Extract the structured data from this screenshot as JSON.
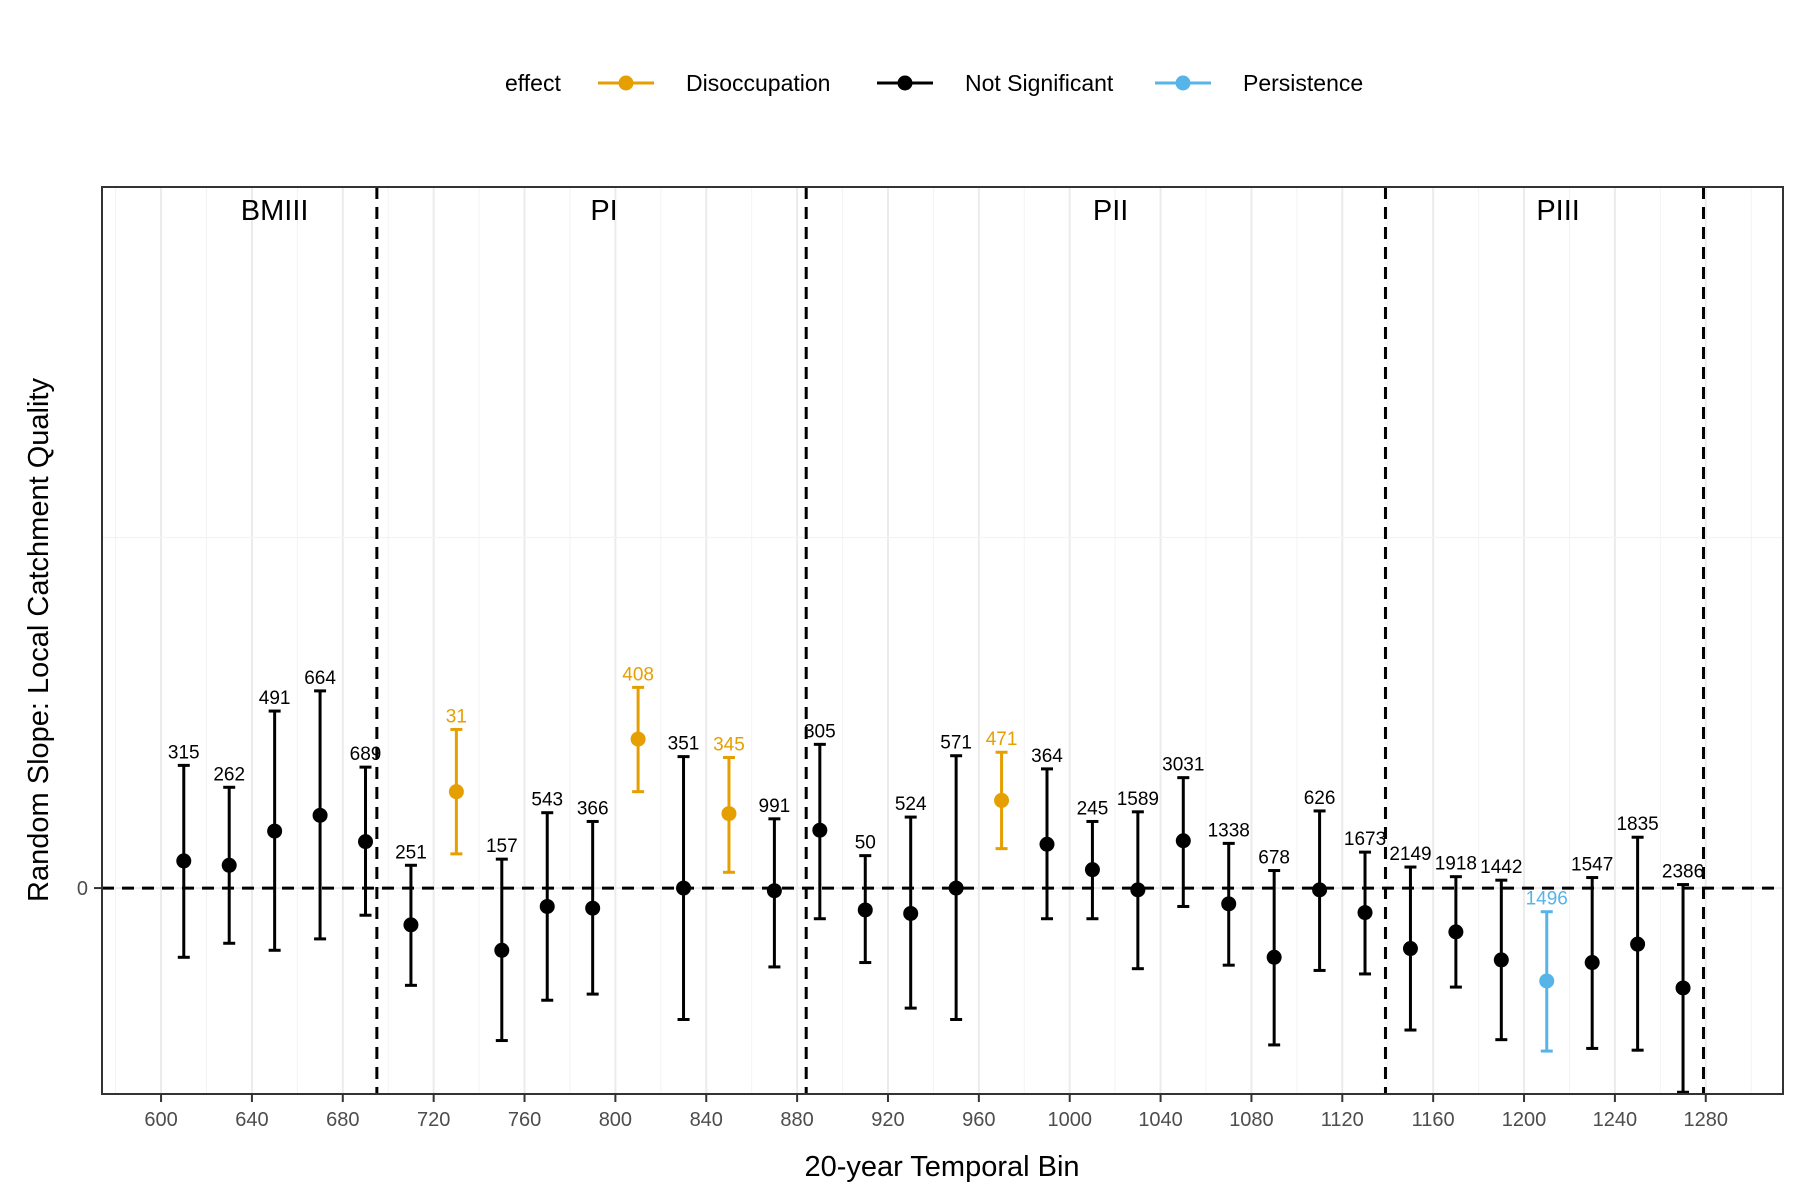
{
  "chart_data": {
    "type": "scatter",
    "xlabel": "20-year Temporal Bin",
    "ylabel": "Random Slope: Local Catchment Quality",
    "xlim": [
      574,
      1314
    ],
    "ylim": [
      -0.235,
      0.8
    ],
    "xticks": [
      600,
      640,
      680,
      720,
      760,
      800,
      840,
      880,
      920,
      960,
      1000,
      1040,
      1080,
      1120,
      1160,
      1200,
      1240,
      1280
    ],
    "yticks": [
      0
    ],
    "ytick_labels": [
      "0"
    ],
    "y_minor_grid": [
      0.4
    ],
    "legend": {
      "title": "effect",
      "position": "top",
      "entries": [
        {
          "name": "Disoccupation",
          "color": "#E69F00"
        },
        {
          "name": "Not Significant",
          "color": "#000000"
        },
        {
          "name": "Persistence",
          "color": "#56B4E9"
        }
      ]
    },
    "periods": [
      {
        "label": "BMIII",
        "x": 650
      },
      {
        "label": "PI",
        "x": 795
      },
      {
        "label": "PII",
        "x": 1018
      },
      {
        "label": "PIII",
        "x": 1215
      }
    ],
    "period_boundaries": [
      695,
      884,
      1139,
      1279
    ],
    "zero_line": 0,
    "points": [
      {
        "x": 610,
        "y": 0.031,
        "lo": -0.079,
        "hi": 0.14,
        "label": "315",
        "effect": "Not Significant"
      },
      {
        "x": 630,
        "y": 0.026,
        "lo": -0.063,
        "hi": 0.115,
        "label": "262",
        "effect": "Not Significant"
      },
      {
        "x": 650,
        "y": 0.065,
        "lo": -0.071,
        "hi": 0.202,
        "label": "491",
        "effect": "Not Significant"
      },
      {
        "x": 670,
        "y": 0.083,
        "lo": -0.058,
        "hi": 0.225,
        "label": "664",
        "effect": "Not Significant"
      },
      {
        "x": 690,
        "y": 0.053,
        "lo": -0.031,
        "hi": 0.138,
        "label": "689",
        "effect": "Not Significant"
      },
      {
        "x": 710,
        "y": -0.042,
        "lo": -0.111,
        "hi": 0.026,
        "label": "251",
        "effect": "Not Significant"
      },
      {
        "x": 730,
        "y": 0.11,
        "lo": 0.039,
        "hi": 0.181,
        "label": "31",
        "effect": "Disoccupation"
      },
      {
        "x": 750,
        "y": -0.071,
        "lo": -0.174,
        "hi": 0.033,
        "label": "157",
        "effect": "Not Significant"
      },
      {
        "x": 770,
        "y": -0.021,
        "lo": -0.128,
        "hi": 0.086,
        "label": "543",
        "effect": "Not Significant"
      },
      {
        "x": 790,
        "y": -0.023,
        "lo": -0.121,
        "hi": 0.076,
        "label": "366",
        "effect": "Not Significant"
      },
      {
        "x": 810,
        "y": 0.17,
        "lo": 0.11,
        "hi": 0.229,
        "label": "408",
        "effect": "Disoccupation"
      },
      {
        "x": 830,
        "y": 0.0,
        "lo": -0.15,
        "hi": 0.15,
        "label": "351",
        "effect": "Not Significant"
      },
      {
        "x": 850,
        "y": 0.085,
        "lo": 0.018,
        "hi": 0.149,
        "label": "345",
        "effect": "Disoccupation"
      },
      {
        "x": 870,
        "y": -0.003,
        "lo": -0.09,
        "hi": 0.079,
        "label": "991",
        "effect": "Not Significant"
      },
      {
        "x": 890,
        "y": 0.066,
        "lo": -0.035,
        "hi": 0.164,
        "label": "305",
        "effect": "Not Significant"
      },
      {
        "x": 910,
        "y": -0.025,
        "lo": -0.085,
        "hi": 0.037,
        "label": "50",
        "effect": "Not Significant"
      },
      {
        "x": 930,
        "y": -0.029,
        "lo": -0.137,
        "hi": 0.081,
        "label": "524",
        "effect": "Not Significant"
      },
      {
        "x": 950,
        "y": 0.0,
        "lo": -0.15,
        "hi": 0.151,
        "label": "571",
        "effect": "Not Significant"
      },
      {
        "x": 970,
        "y": 0.1,
        "lo": 0.045,
        "hi": 0.155,
        "label": "471",
        "effect": "Disoccupation"
      },
      {
        "x": 990,
        "y": 0.05,
        "lo": -0.035,
        "hi": 0.136,
        "label": "364",
        "effect": "Not Significant"
      },
      {
        "x": 1010,
        "y": 0.021,
        "lo": -0.035,
        "hi": 0.076,
        "label": "245",
        "effect": "Not Significant"
      },
      {
        "x": 1030,
        "y": -0.002,
        "lo": -0.092,
        "hi": 0.087,
        "label": "1589",
        "effect": "Not Significant"
      },
      {
        "x": 1050,
        "y": 0.054,
        "lo": -0.021,
        "hi": 0.126,
        "label": "3031",
        "effect": "Not Significant"
      },
      {
        "x": 1070,
        "y": -0.018,
        "lo": -0.088,
        "hi": 0.051,
        "label": "1338",
        "effect": "Not Significant"
      },
      {
        "x": 1090,
        "y": -0.079,
        "lo": -0.179,
        "hi": 0.02,
        "label": "678",
        "effect": "Not Significant"
      },
      {
        "x": 1110,
        "y": -0.002,
        "lo": -0.094,
        "hi": 0.088,
        "label": "626",
        "effect": "Not Significant"
      },
      {
        "x": 1130,
        "y": -0.028,
        "lo": -0.098,
        "hi": 0.041,
        "label": "1673",
        "effect": "Not Significant"
      },
      {
        "x": 1150,
        "y": -0.069,
        "lo": -0.162,
        "hi": 0.024,
        "label": "2149",
        "effect": "Not Significant"
      },
      {
        "x": 1170,
        "y": -0.05,
        "lo": -0.113,
        "hi": 0.013,
        "label": "1918",
        "effect": "Not Significant"
      },
      {
        "x": 1190,
        "y": -0.082,
        "lo": -0.173,
        "hi": 0.009,
        "label": "1442",
        "effect": "Not Significant"
      },
      {
        "x": 1210,
        "y": -0.106,
        "lo": -0.186,
        "hi": -0.027,
        "label": "1496",
        "effect": "Persistence"
      },
      {
        "x": 1230,
        "y": -0.085,
        "lo": -0.183,
        "hi": 0.012,
        "label": "1547",
        "effect": "Not Significant"
      },
      {
        "x": 1250,
        "y": -0.064,
        "lo": -0.185,
        "hi": 0.058,
        "label": "1835",
        "effect": "Not Significant"
      },
      {
        "x": 1270,
        "y": -0.114,
        "lo": -0.233,
        "hi": 0.004,
        "label": "2386",
        "effect": "Not Significant"
      }
    ]
  }
}
